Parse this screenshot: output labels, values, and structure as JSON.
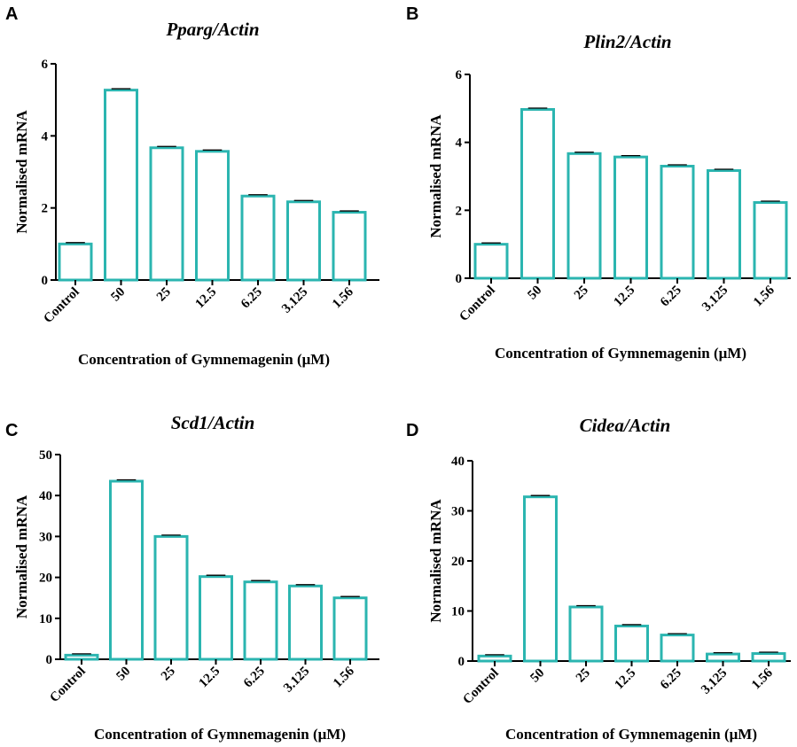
{
  "chart_data": [
    {
      "panel": "A",
      "type": "bar",
      "title": "Pparg/Actin",
      "ylabel": "Normalised mRNA",
      "xlabel": "Concentration of Gymnemagenin (μM)",
      "categories": [
        "Control",
        "50",
        "25",
        "12.5",
        "6.25",
        "3.125",
        "1.56"
      ],
      "values": [
        1.0,
        5.27,
        3.67,
        3.57,
        2.33,
        2.17,
        1.88
      ],
      "ylim": [
        0,
        6
      ],
      "yticks": [
        0,
        2,
        4,
        6
      ],
      "bar_color": "#2bb5b0"
    },
    {
      "panel": "B",
      "type": "bar",
      "title": "Plin2/Actin",
      "ylabel": "Normalised mRNA",
      "xlabel": "Concentration of Gymnemagenin (μM)",
      "categories": [
        "Control",
        "50",
        "25",
        "12.5",
        "6.25",
        "3.125",
        "1.56"
      ],
      "values": [
        1.0,
        4.97,
        3.67,
        3.57,
        3.3,
        3.17,
        2.23
      ],
      "ylim": [
        0,
        6
      ],
      "yticks": [
        0,
        2,
        4,
        6
      ],
      "bar_color": "#2bb5b0"
    },
    {
      "panel": "C",
      "type": "bar",
      "title": "Scd1/Actin",
      "ylabel": "Normalised mRNA",
      "xlabel": "Concentration of Gymnemagenin (μM)",
      "categories": [
        "Control",
        "50",
        "25",
        "12.5",
        "6.25",
        "3.125",
        "1.56"
      ],
      "values": [
        1.0,
        43.5,
        30.0,
        20.2,
        18.9,
        17.9,
        15.0
      ],
      "ylim": [
        0,
        50
      ],
      "yticks": [
        0,
        10,
        20,
        30,
        40,
        50
      ],
      "bar_color": "#2bb5b0"
    },
    {
      "panel": "D",
      "type": "bar",
      "title": "Cidea/Actin",
      "ylabel": "Normalised mRNA",
      "xlabel": "Concentration of Gymnemagenin (μM)",
      "categories": [
        "Control",
        "50",
        "25",
        "12.5",
        "6.25",
        "3.125",
        "1.56"
      ],
      "values": [
        1.0,
        32.8,
        10.8,
        7.0,
        5.2,
        1.4,
        1.5
      ],
      "ylim": [
        0,
        40
      ],
      "yticks": [
        0,
        10,
        20,
        30,
        40
      ],
      "bar_color": "#2bb5b0"
    }
  ]
}
